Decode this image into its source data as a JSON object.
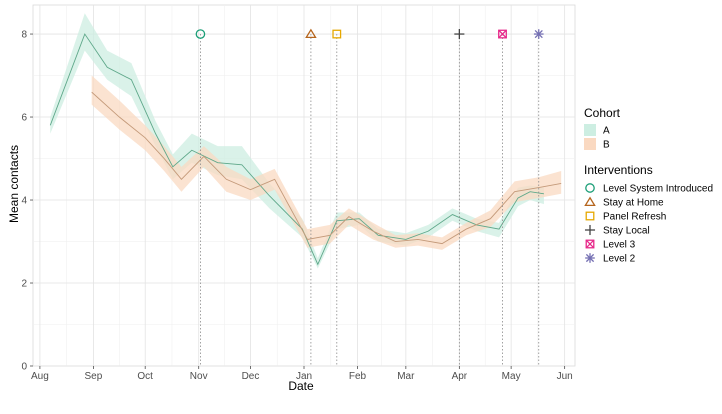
{
  "chart_data": {
    "type": "line",
    "xlabel": "Date",
    "ylabel": "Mean contacts",
    "ylim": [
      0,
      8.7
    ],
    "xlim": [
      "2020-07-28",
      "2021-06-07"
    ],
    "x_ticks": [
      {
        "date": "2020-08-01",
        "label": "Aug"
      },
      {
        "date": "2020-09-01",
        "label": "Sep"
      },
      {
        "date": "2020-10-01",
        "label": "Oct"
      },
      {
        "date": "2020-11-01",
        "label": "Nov"
      },
      {
        "date": "2020-12-01",
        "label": "Dec"
      },
      {
        "date": "2021-01-01",
        "label": "Jan"
      },
      {
        "date": "2021-02-01",
        "label": "Feb"
      },
      {
        "date": "2021-03-01",
        "label": "Mar"
      },
      {
        "date": "2021-04-01",
        "label": "Apr"
      },
      {
        "date": "2021-05-01",
        "label": "May"
      },
      {
        "date": "2021-06-01",
        "label": "Jun"
      }
    ],
    "y_ticks": [
      0,
      2,
      4,
      6,
      8
    ],
    "grid": true,
    "legend_position": "right",
    "cohort_legend_title": "Cohort",
    "interventions_legend_title": "Interventions",
    "series": [
      {
        "name": "A",
        "line_color": "#5fa88a",
        "fill_color": "#cdeee2",
        "points": [
          {
            "x": "2020-08-07",
            "y": 5.8,
            "lo": 5.6,
            "hi": 6.0
          },
          {
            "x": "2020-08-27",
            "y": 8.0,
            "lo": 7.6,
            "hi": 8.5
          },
          {
            "x": "2020-09-09",
            "y": 7.2,
            "lo": 6.9,
            "hi": 7.6
          },
          {
            "x": "2020-09-23",
            "y": 6.9,
            "lo": 6.5,
            "hi": 7.3
          },
          {
            "x": "2020-10-07",
            "y": 5.6,
            "lo": 5.3,
            "hi": 5.9
          },
          {
            "x": "2020-10-17",
            "y": 4.8,
            "lo": 4.5,
            "hi": 5.1
          },
          {
            "x": "2020-10-28",
            "y": 5.2,
            "lo": 4.9,
            "hi": 5.6
          },
          {
            "x": "2020-11-12",
            "y": 4.9,
            "lo": 4.6,
            "hi": 5.3
          },
          {
            "x": "2020-11-26",
            "y": 4.85,
            "lo": 4.5,
            "hi": 5.3
          },
          {
            "x": "2020-12-12",
            "y": 4.1,
            "lo": 3.8,
            "hi": 4.4
          },
          {
            "x": "2020-12-31",
            "y": 3.3,
            "lo": 3.1,
            "hi": 3.55
          },
          {
            "x": "2021-01-09",
            "y": 2.45,
            "lo": 2.35,
            "hi": 2.6
          },
          {
            "x": "2021-01-20",
            "y": 3.5,
            "lo": 3.3,
            "hi": 3.7
          },
          {
            "x": "2021-02-02",
            "y": 3.55,
            "lo": 3.4,
            "hi": 3.7
          },
          {
            "x": "2021-02-13",
            "y": 3.15,
            "lo": 3.0,
            "hi": 3.3
          },
          {
            "x": "2021-03-01",
            "y": 3.05,
            "lo": 2.9,
            "hi": 3.2
          },
          {
            "x": "2021-03-14",
            "y": 3.25,
            "lo": 3.1,
            "hi": 3.4
          },
          {
            "x": "2021-03-28",
            "y": 3.65,
            "lo": 3.5,
            "hi": 3.8
          },
          {
            "x": "2021-04-11",
            "y": 3.4,
            "lo": 3.25,
            "hi": 3.55
          },
          {
            "x": "2021-04-24",
            "y": 3.3,
            "lo": 3.1,
            "hi": 3.45
          },
          {
            "x": "2021-05-05",
            "y": 4.05,
            "lo": 3.85,
            "hi": 4.3
          },
          {
            "x": "2021-05-12",
            "y": 4.2,
            "lo": 4.0,
            "hi": 4.35
          },
          {
            "x": "2021-05-20",
            "y": 4.15,
            "lo": 3.9,
            "hi": 4.3
          }
        ]
      },
      {
        "name": "B",
        "line_color": "#c49a7a",
        "fill_color": "#fad9c1",
        "points": [
          {
            "x": "2020-08-31",
            "y": 6.6,
            "lo": 6.3,
            "hi": 7.0
          },
          {
            "x": "2020-09-16",
            "y": 6.0,
            "lo": 5.7,
            "hi": 6.4
          },
          {
            "x": "2020-10-01",
            "y": 5.5,
            "lo": 5.2,
            "hi": 5.8
          },
          {
            "x": "2020-10-12",
            "y": 5.0,
            "lo": 4.7,
            "hi": 5.3
          },
          {
            "x": "2020-10-22",
            "y": 4.5,
            "lo": 4.2,
            "hi": 4.8
          },
          {
            "x": "2020-11-04",
            "y": 5.05,
            "lo": 4.8,
            "hi": 5.3
          },
          {
            "x": "2020-11-17",
            "y": 4.5,
            "lo": 4.2,
            "hi": 4.8
          },
          {
            "x": "2020-12-01",
            "y": 4.25,
            "lo": 4.0,
            "hi": 4.5
          },
          {
            "x": "2020-12-15",
            "y": 4.5,
            "lo": 4.25,
            "hi": 4.75
          },
          {
            "x": "2021-01-03",
            "y": 3.05,
            "lo": 2.85,
            "hi": 3.3
          },
          {
            "x": "2021-01-16",
            "y": 3.15,
            "lo": 2.95,
            "hi": 3.4
          },
          {
            "x": "2021-01-27",
            "y": 3.6,
            "lo": 3.4,
            "hi": 3.8
          },
          {
            "x": "2021-02-10",
            "y": 3.25,
            "lo": 3.05,
            "hi": 3.45
          },
          {
            "x": "2021-02-23",
            "y": 3.0,
            "lo": 2.85,
            "hi": 3.15
          },
          {
            "x": "2021-03-08",
            "y": 3.05,
            "lo": 2.9,
            "hi": 3.2
          },
          {
            "x": "2021-03-22",
            "y": 2.95,
            "lo": 2.8,
            "hi": 3.1
          },
          {
            "x": "2021-04-05",
            "y": 3.3,
            "lo": 3.15,
            "hi": 3.45
          },
          {
            "x": "2021-04-19",
            "y": 3.55,
            "lo": 3.35,
            "hi": 3.75
          },
          {
            "x": "2021-05-03",
            "y": 4.2,
            "lo": 3.95,
            "hi": 4.45
          },
          {
            "x": "2021-05-17",
            "y": 4.3,
            "lo": 4.05,
            "hi": 4.55
          },
          {
            "x": "2021-05-30",
            "y": 4.4,
            "lo": 4.15,
            "hi": 4.7
          }
        ]
      }
    ],
    "interventions": [
      {
        "name": "Level System Introduced",
        "date": "2020-11-02",
        "shape": "circle",
        "color": "#1b9e77"
      },
      {
        "name": "Stay at Home",
        "date": "2021-01-05",
        "shape": "triangle",
        "color": "#b5651d"
      },
      {
        "name": "Panel Refresh",
        "date": "2021-01-20",
        "shape": "square",
        "color": "#e6a800"
      },
      {
        "name": "Stay Local",
        "date": "2021-04-01",
        "shape": "plus",
        "color": "#444444"
      },
      {
        "name": "Level 3",
        "date": "2021-04-26",
        "shape": "square-cross",
        "color": "#e7298a"
      },
      {
        "name": "Level 2",
        "date": "2021-05-17",
        "shape": "asterisk",
        "color": "#7570b3"
      }
    ],
    "intervention_marker_y": 8
  }
}
